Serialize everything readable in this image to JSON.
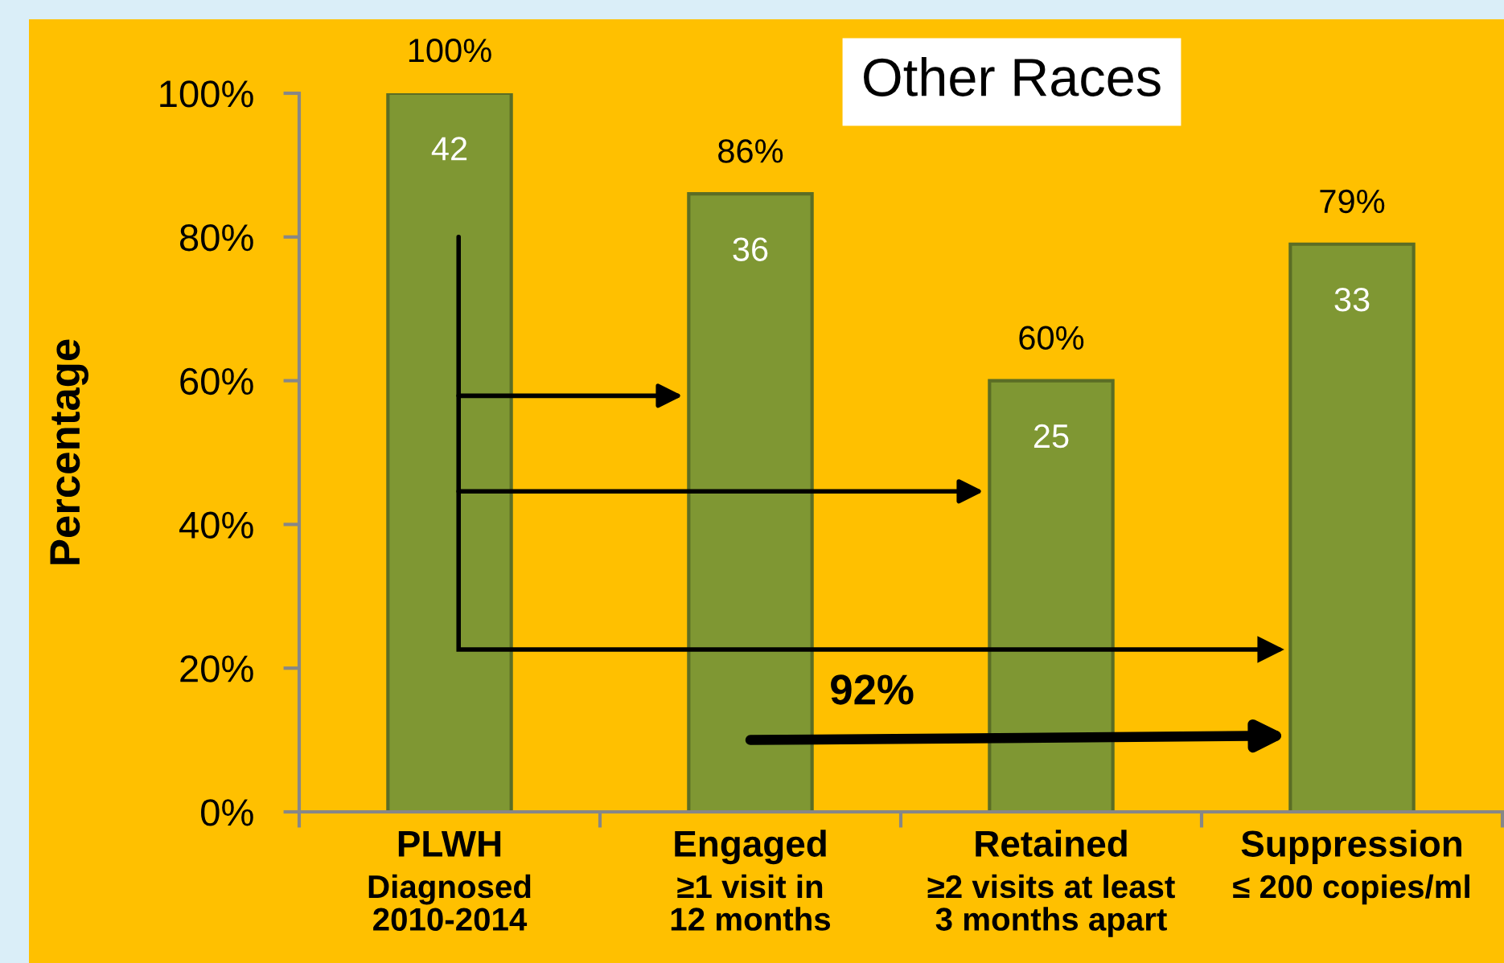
{
  "chart_data": {
    "type": "bar",
    "title": "Other Races",
    "ylabel": "Percentage",
    "categories": [
      "PLWH\nDiagnosed\n2010-2014",
      "Engaged\n≥1 visit in\n12 months",
      "Retained\n≥2 visits at least\n3 months apart",
      "Suppression\n≤ 200 copies/ml"
    ],
    "values": [
      100,
      86,
      60,
      79
    ],
    "color": "#7f9733",
    "value_labels": [
      "100%",
      "86%",
      "60%",
      "79%"
    ],
    "ylim": [
      0,
      100
    ],
    "yticks": [
      {
        "value": 0,
        "label": "0%"
      },
      {
        "value": 20,
        "label": "20%"
      },
      {
        "value": 40,
        "label": "40%"
      },
      {
        "value": 60,
        "label": "60%"
      },
      {
        "value": 80,
        "label": "80%"
      },
      {
        "value": 100,
        "label": "100%"
      }
    ],
    "annotations": [
      {
        "text": "42",
        "x": "PLWH\nDiagnosed\n2010-2014",
        "y": 100
      },
      {
        "text": "36",
        "x": "Engaged\n≥1 visit in\n12 months",
        "y": 86
      },
      {
        "text": "25",
        "x": "Retained\n≥2 visits at least\n3 months apart",
        "y": 60
      },
      {
        "text": "33",
        "x": "Suppression\n≤ 200 copies/ml",
        "y": 79
      },
      "92%"
    ]
  }
}
